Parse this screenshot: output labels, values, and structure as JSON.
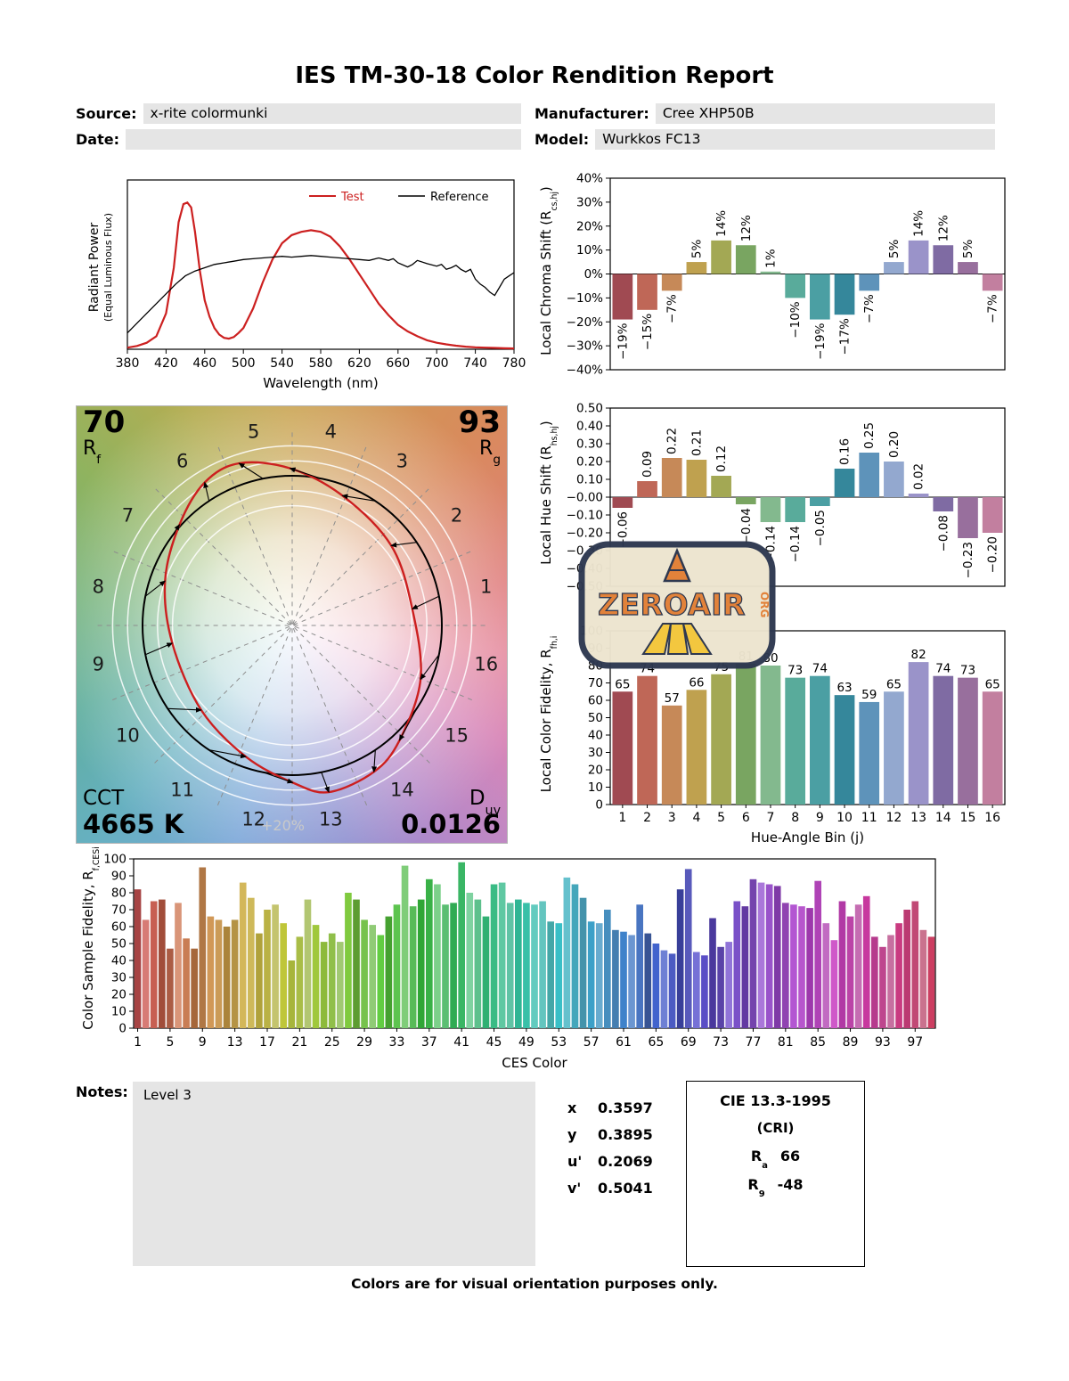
{
  "page": {
    "title": "IES TM-30-18 Color Rendition Report",
    "footer": "Colors are for visual orientation purposes only."
  },
  "meta": {
    "source_label": "Source:",
    "source_value": "x-rite colormunki",
    "date_label": "Date:",
    "date_value": "",
    "manufacturer_label": "Manufacturer:",
    "manufacturer_value": "Cree XHP50B",
    "model_label": "Model:",
    "model_value": "Wurkkos FC13"
  },
  "watermark": {
    "text": "ZEROAIR",
    "suffix": "ORG"
  },
  "notes": {
    "label": "Notes:",
    "value": "Level 3"
  },
  "chromaticity": {
    "rows": [
      {
        "label": "x",
        "value": "0.3597"
      },
      {
        "label": "y",
        "value": "0.3895"
      },
      {
        "label": "u'",
        "value": "0.2069"
      },
      {
        "label": "v'",
        "value": "0.5041"
      }
    ]
  },
  "cri": {
    "title": "CIE 13.3-1995",
    "subtitle": "(CRI)",
    "ra_pre": "R",
    "ra_sub": "a",
    "ra_value": "66",
    "r9_pre": "R",
    "r9_sub": "9",
    "r9_value": "-48"
  },
  "cvg": {
    "rf_value": "70",
    "rf_pre": "R",
    "rf_sub": "f",
    "rg_value": "93",
    "rg_pre": "R",
    "rg_sub": "g",
    "cct_label": "CCT",
    "cct_value": "4665 K",
    "duv_pre": "D",
    "duv_sub": "uv",
    "duv_value": "0.0126",
    "ring_label": "+20%",
    "bin_labels": [
      "1",
      "2",
      "3",
      "4",
      "5",
      "6",
      "7",
      "8",
      "9",
      "10",
      "11",
      "12",
      "13",
      "14",
      "15",
      "16"
    ]
  },
  "bin_colors": [
    "#a04a52",
    "#bf6757",
    "#c68958",
    "#bfa14f",
    "#a3a854",
    "#79a561",
    "#83b98e",
    "#59ab9b",
    "#4b9fa3",
    "#35879b",
    "#5e93ba",
    "#93a8cf",
    "#9a93c9",
    "#7f6ba3",
    "#986f9d",
    "#c27f9f"
  ],
  "chart_data": [
    {
      "id": "spd",
      "type": "line",
      "xlabel": "Wavelength (nm)",
      "ylabel": "Radiant Power",
      "ylabel2": "(Equal Luminous Flux)",
      "xlim": [
        380,
        780
      ],
      "xticks": [
        380,
        420,
        460,
        500,
        540,
        580,
        620,
        660,
        700,
        740,
        780
      ],
      "legend": [
        "Test",
        "Reference"
      ],
      "series": [
        {
          "name": "Test",
          "color": "#cc2020",
          "points": [
            [
              380,
              0.01
            ],
            [
              390,
              0.02
            ],
            [
              400,
              0.04
            ],
            [
              410,
              0.08
            ],
            [
              420,
              0.22
            ],
            [
              428,
              0.5
            ],
            [
              433,
              0.78
            ],
            [
              438,
              0.89
            ],
            [
              442,
              0.9
            ],
            [
              446,
              0.87
            ],
            [
              450,
              0.72
            ],
            [
              455,
              0.48
            ],
            [
              460,
              0.3
            ],
            [
              465,
              0.2
            ],
            [
              470,
              0.13
            ],
            [
              475,
              0.09
            ],
            [
              480,
              0.07
            ],
            [
              485,
              0.065
            ],
            [
              490,
              0.075
            ],
            [
              495,
              0.1
            ],
            [
              500,
              0.13
            ],
            [
              510,
              0.25
            ],
            [
              520,
              0.41
            ],
            [
              530,
              0.55
            ],
            [
              540,
              0.65
            ],
            [
              550,
              0.7
            ],
            [
              560,
              0.72
            ],
            [
              570,
              0.73
            ],
            [
              580,
              0.72
            ],
            [
              590,
              0.69
            ],
            [
              600,
              0.63
            ],
            [
              610,
              0.55
            ],
            [
              620,
              0.46
            ],
            [
              630,
              0.37
            ],
            [
              640,
              0.28
            ],
            [
              650,
              0.21
            ],
            [
              660,
              0.15
            ],
            [
              670,
              0.11
            ],
            [
              680,
              0.08
            ],
            [
              690,
              0.055
            ],
            [
              700,
              0.04
            ],
            [
              710,
              0.03
            ],
            [
              720,
              0.022
            ],
            [
              730,
              0.016
            ],
            [
              740,
              0.012
            ],
            [
              750,
              0.01
            ],
            [
              760,
              0.008
            ],
            [
              770,
              0.006
            ],
            [
              780,
              0.005
            ]
          ]
        },
        {
          "name": "Reference",
          "color": "#000000",
          "points": [
            [
              380,
              0.1
            ],
            [
              390,
              0.16
            ],
            [
              400,
              0.22
            ],
            [
              410,
              0.28
            ],
            [
              420,
              0.34
            ],
            [
              430,
              0.4
            ],
            [
              440,
              0.45
            ],
            [
              450,
              0.48
            ],
            [
              460,
              0.5
            ],
            [
              470,
              0.52
            ],
            [
              480,
              0.53
            ],
            [
              490,
              0.54
            ],
            [
              500,
              0.55
            ],
            [
              510,
              0.555
            ],
            [
              520,
              0.56
            ],
            [
              530,
              0.565
            ],
            [
              540,
              0.57
            ],
            [
              550,
              0.565
            ],
            [
              560,
              0.57
            ],
            [
              570,
              0.575
            ],
            [
              580,
              0.57
            ],
            [
              590,
              0.565
            ],
            [
              600,
              0.56
            ],
            [
              610,
              0.555
            ],
            [
              620,
              0.55
            ],
            [
              630,
              0.545
            ],
            [
              640,
              0.56
            ],
            [
              650,
              0.545
            ],
            [
              655,
              0.555
            ],
            [
              660,
              0.53
            ],
            [
              670,
              0.505
            ],
            [
              675,
              0.52
            ],
            [
              680,
              0.545
            ],
            [
              690,
              0.525
            ],
            [
              700,
              0.51
            ],
            [
              705,
              0.52
            ],
            [
              710,
              0.49
            ],
            [
              715,
              0.5
            ],
            [
              720,
              0.515
            ],
            [
              725,
              0.49
            ],
            [
              730,
              0.475
            ],
            [
              735,
              0.49
            ],
            [
              740,
              0.43
            ],
            [
              745,
              0.4
            ],
            [
              750,
              0.38
            ],
            [
              755,
              0.35
            ],
            [
              760,
              0.33
            ],
            [
              765,
              0.38
            ],
            [
              770,
              0.43
            ],
            [
              775,
              0.45
            ],
            [
              780,
              0.47
            ]
          ]
        }
      ]
    },
    {
      "id": "chroma_shift",
      "type": "bar",
      "ylabel_pre": "Local Chroma Shift (R",
      "ylabel_sub": "cs,hj",
      "ylabel_post": ")",
      "ylim": [
        -40,
        40
      ],
      "ystep": 10,
      "unit": "%",
      "categories": [
        1,
        2,
        3,
        4,
        5,
        6,
        7,
        8,
        9,
        10,
        11,
        12,
        13,
        14,
        15,
        16
      ],
      "values": [
        -19,
        -15,
        -7,
        5,
        14,
        12,
        1,
        -10,
        -19,
        -17,
        -7,
        5,
        14,
        12,
        5,
        -7
      ]
    },
    {
      "id": "hue_shift",
      "type": "bar",
      "ylabel_pre": "Local Hue Shift (R",
      "ylabel_sub": "hs,hj",
      "ylabel_post": ")",
      "ylim": [
        -0.5,
        0.5
      ],
      "ystep": 0.1,
      "categories": [
        1,
        2,
        3,
        4,
        5,
        6,
        7,
        8,
        9,
        10,
        11,
        12,
        13,
        14,
        15,
        16
      ],
      "values": [
        -0.06,
        0.09,
        0.22,
        0.21,
        0.12,
        -0.04,
        -0.14,
        -0.14,
        -0.05,
        0.16,
        0.25,
        0.2,
        0.02,
        -0.08,
        -0.23,
        -0.2
      ]
    },
    {
      "id": "local_fidelity",
      "type": "bar",
      "ylabel_pre": "Local Color Fidelity, R",
      "ylabel_sub": "fh,i",
      "ylabel_post": "",
      "xlabel": "Hue-Angle Bin (j)",
      "ylim": [
        0,
        100
      ],
      "ystep": 10,
      "categories": [
        1,
        2,
        3,
        4,
        5,
        6,
        7,
        8,
        9,
        10,
        11,
        12,
        13,
        14,
        15,
        16
      ],
      "values": [
        65,
        74,
        57,
        66,
        75,
        81,
        80,
        73,
        74,
        63,
        59,
        65,
        82,
        74,
        73,
        65
      ]
    },
    {
      "id": "ces_fidelity",
      "type": "bar",
      "ylabel_pre": "Color Sample Fidelity, R",
      "ylabel_sub": "f,CESi",
      "ylabel_post": "",
      "xlabel": "CES Color",
      "ylim": [
        0,
        100
      ],
      "ystep": 10,
      "xticks": [
        1,
        5,
        9,
        13,
        17,
        21,
        25,
        29,
        33,
        37,
        41,
        45,
        49,
        53,
        57,
        61,
        65,
        69,
        73,
        77,
        81,
        85,
        89,
        93,
        97
      ],
      "values": [
        82,
        64,
        75,
        76,
        47,
        74,
        53,
        47,
        95,
        66,
        64,
        60,
        64,
        86,
        77,
        56,
        70,
        73,
        62,
        40,
        54,
        76,
        61,
        51,
        56,
        51,
        80,
        76,
        64,
        61,
        55,
        66,
        73,
        96,
        72,
        76,
        88,
        85,
        73,
        74,
        98,
        80,
        76,
        66,
        85,
        86,
        74,
        76,
        74,
        73,
        75,
        63,
        62,
        89,
        85,
        77,
        63,
        62,
        70,
        58,
        57,
        55,
        73,
        56,
        50,
        46,
        44,
        82,
        94,
        45,
        43,
        65,
        48,
        51,
        75,
        72,
        88,
        86,
        85,
        84,
        74,
        73,
        72,
        71,
        87,
        62,
        52,
        75,
        66,
        73,
        78,
        54,
        48,
        55,
        62,
        70,
        75,
        58,
        54
      ]
    }
  ]
}
